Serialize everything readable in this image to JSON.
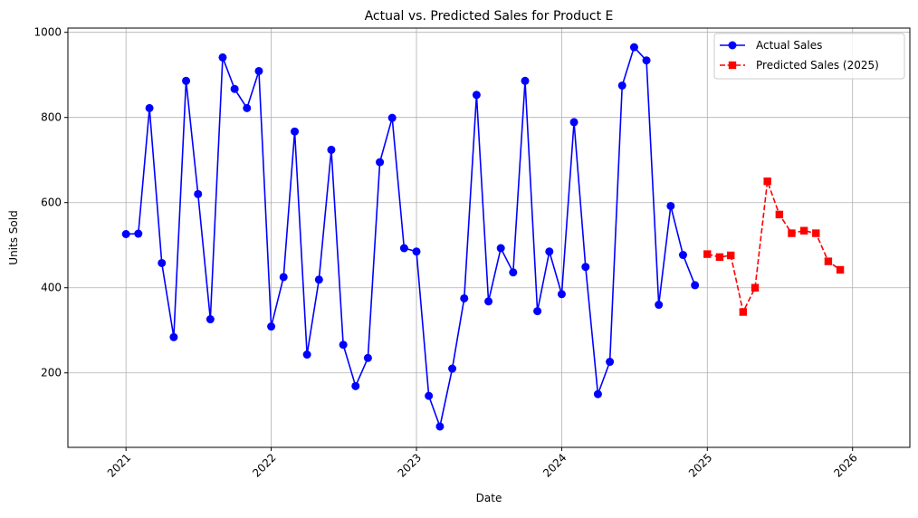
{
  "chart_data": {
    "type": "line",
    "title": "Actual vs. Predicted Sales for Product E",
    "xlabel": "Date",
    "ylabel": "Units Sold",
    "xlim": [
      "2020-08-08",
      "2026-05-25"
    ],
    "ylim": [
      25,
      1010
    ],
    "x_ticks": [
      "2021",
      "2022",
      "2023",
      "2024",
      "2025",
      "2026"
    ],
    "y_ticks": [
      200,
      400,
      600,
      800,
      1000
    ],
    "grid": true,
    "legend_position": "top-right",
    "series": [
      {
        "name": "Actual Sales",
        "color": "#0000ff",
        "marker": "circle",
        "line_style": "solid",
        "x": [
          "2021-01-01",
          "2021-02-01",
          "2021-03-01",
          "2021-04-01",
          "2021-05-01",
          "2021-06-01",
          "2021-07-01",
          "2021-08-01",
          "2021-09-01",
          "2021-10-01",
          "2021-11-01",
          "2021-12-01",
          "2022-01-01",
          "2022-02-01",
          "2022-03-01",
          "2022-04-01",
          "2022-05-01",
          "2022-06-01",
          "2022-07-01",
          "2022-08-01",
          "2022-09-01",
          "2022-10-01",
          "2022-11-01",
          "2022-12-01",
          "2023-01-01",
          "2023-02-01",
          "2023-03-01",
          "2023-04-01",
          "2023-05-01",
          "2023-06-01",
          "2023-07-01",
          "2023-08-01",
          "2023-09-01",
          "2023-10-01",
          "2023-11-01",
          "2023-12-01",
          "2024-01-01",
          "2024-02-01",
          "2024-03-01",
          "2024-04-01",
          "2024-05-01",
          "2024-06-01",
          "2024-07-01",
          "2024-08-01",
          "2024-09-01",
          "2024-10-01",
          "2024-11-01",
          "2024-12-01"
        ],
        "values": [
          526,
          527,
          822,
          458,
          284,
          886,
          620,
          326,
          941,
          867,
          822,
          909,
          309,
          425,
          767,
          243,
          419,
          724,
          266,
          169,
          235,
          695,
          799,
          493,
          485,
          146,
          74,
          210,
          375,
          853,
          368,
          493,
          436,
          886,
          345,
          485,
          385,
          789,
          449,
          150,
          226,
          875,
          965,
          934,
          360,
          592,
          477,
          406
        ]
      },
      {
        "name": "Predicted Sales (2025)",
        "color": "#ff0000",
        "marker": "square",
        "line_style": "dashed",
        "x": [
          "2025-01-01",
          "2025-02-01",
          "2025-03-01",
          "2025-04-01",
          "2025-05-01",
          "2025-06-01",
          "2025-07-01",
          "2025-08-01",
          "2025-09-01",
          "2025-10-01",
          "2025-11-01",
          "2025-12-01"
        ],
        "values": [
          479,
          472,
          476,
          343,
          400,
          650,
          572,
          528,
          534,
          528,
          462,
          442
        ]
      }
    ]
  }
}
